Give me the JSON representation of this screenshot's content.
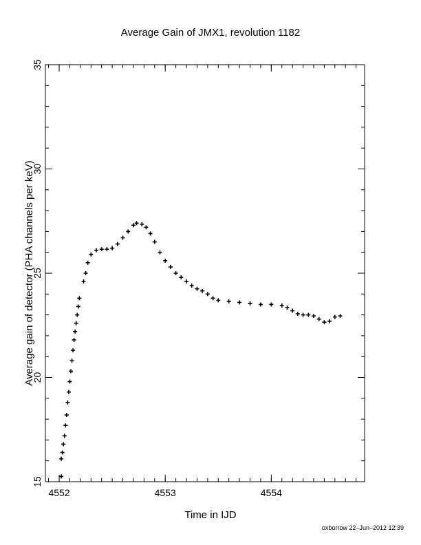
{
  "chart_data": {
    "type": "scatter",
    "title": "Average Gain of JMX1, revolution 1182",
    "xlabel": "Time in IJD",
    "ylabel": "Average gain of detector (PHA channels per keV)",
    "xlim": [
      4551.87,
      4554.88
    ],
    "ylim": [
      15,
      35
    ],
    "xticks": [
      4552,
      4553,
      4554
    ],
    "yticks": [
      15,
      20,
      25,
      30,
      35
    ],
    "x_minor_step": 0.1,
    "y_minor_step": 1,
    "grid": false,
    "legend": "none",
    "marker": "plus",
    "points": [
      [
        4552.02,
        15.25
      ],
      [
        4552.02,
        16.1
      ],
      [
        4552.03,
        16.4
      ],
      [
        4552.04,
        16.8
      ],
      [
        4552.05,
        17.2
      ],
      [
        4552.06,
        17.7
      ],
      [
        4552.07,
        18.2
      ],
      [
        4552.08,
        18.8
      ],
      [
        4552.09,
        19.3
      ],
      [
        4552.1,
        19.8
      ],
      [
        4552.11,
        20.3
      ],
      [
        4552.12,
        20.8
      ],
      [
        4552.13,
        21.3
      ],
      [
        4552.14,
        21.8
      ],
      [
        4552.15,
        22.2
      ],
      [
        4552.16,
        22.6
      ],
      [
        4552.17,
        23.0
      ],
      [
        4552.18,
        23.4
      ],
      [
        4552.19,
        23.8
      ],
      [
        4552.23,
        24.6
      ],
      [
        4552.25,
        25.0
      ],
      [
        4552.27,
        25.5
      ],
      [
        4552.3,
        25.9
      ],
      [
        4552.35,
        26.1
      ],
      [
        4552.4,
        26.15
      ],
      [
        4552.45,
        26.15
      ],
      [
        4552.5,
        26.2
      ],
      [
        4552.55,
        26.4
      ],
      [
        4552.6,
        26.7
      ],
      [
        4552.65,
        27.0
      ],
      [
        4552.7,
        27.3
      ],
      [
        4552.73,
        27.4
      ],
      [
        4552.78,
        27.35
      ],
      [
        4552.82,
        27.2
      ],
      [
        4552.86,
        26.9
      ],
      [
        4552.9,
        26.5
      ],
      [
        4552.95,
        26.0
      ],
      [
        4553.0,
        25.6
      ],
      [
        4553.05,
        25.3
      ],
      [
        4553.1,
        25.0
      ],
      [
        4553.15,
        24.8
      ],
      [
        4553.2,
        24.6
      ],
      [
        4553.25,
        24.4
      ],
      [
        4553.3,
        24.25
      ],
      [
        4553.35,
        24.15
      ],
      [
        4553.4,
        24.0
      ],
      [
        4553.45,
        23.8
      ],
      [
        4553.5,
        23.7
      ],
      [
        4553.6,
        23.65
      ],
      [
        4553.7,
        23.6
      ],
      [
        4553.8,
        23.55
      ],
      [
        4553.9,
        23.5
      ],
      [
        4554.0,
        23.5
      ],
      [
        4554.1,
        23.45
      ],
      [
        4554.15,
        23.35
      ],
      [
        4554.2,
        23.2
      ],
      [
        4554.25,
        23.05
      ],
      [
        4554.3,
        23.0
      ],
      [
        4554.35,
        23.0
      ],
      [
        4554.4,
        22.95
      ],
      [
        4554.45,
        22.8
      ],
      [
        4554.5,
        22.65
      ],
      [
        4554.55,
        22.7
      ],
      [
        4554.6,
        22.9
      ],
      [
        4554.65,
        22.95
      ]
    ]
  },
  "footer": {
    "credit": "oxborrow 22–Jun–2012 12:39"
  }
}
